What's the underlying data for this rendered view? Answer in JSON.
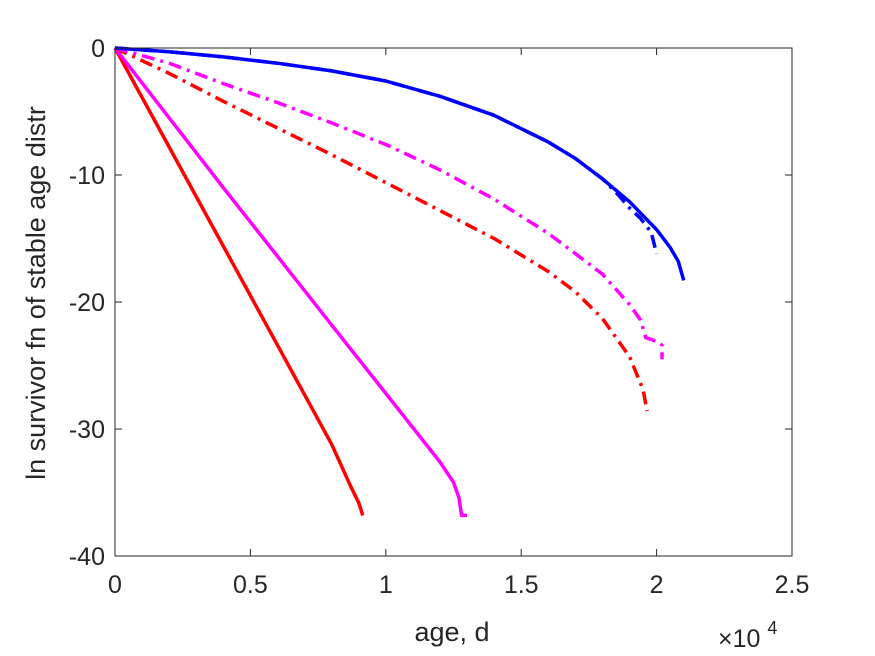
{
  "chart_data": {
    "type": "line",
    "xlabel": "age, d",
    "ylabel": "ln survivor fn of stable age distr",
    "xlim": [
      0,
      25000
    ],
    "ylim": [
      -40,
      0
    ],
    "x_exponent_label": "×10",
    "x_exponent_power": "4",
    "x_tick_values": [
      0,
      5000,
      10000,
      15000,
      20000,
      25000
    ],
    "x_tick_labels": [
      "0",
      "0.5",
      "1",
      "1.5",
      "2",
      "2.5"
    ],
    "y_tick_values": [
      0,
      -10,
      -20,
      -30,
      -40
    ],
    "y_tick_labels": [
      "0",
      "-10",
      "-20",
      "-30",
      "-40"
    ],
    "grid": false,
    "series": [
      {
        "color": "#ff0000",
        "style": "solid",
        "x": [
          0,
          2000,
          4000,
          6000,
          8000,
          8700,
          9000,
          9150
        ],
        "y": [
          0,
          -7.8,
          -15.6,
          -23.4,
          -31.2,
          -34.5,
          -35.8,
          -36.8
        ]
      },
      {
        "color": "#ff00ff",
        "style": "solid",
        "x": [
          0,
          2000,
          4000,
          6000,
          8000,
          10000,
          12000,
          12500,
          12700,
          12800,
          13000
        ],
        "y": [
          0,
          -5.5,
          -11.0,
          -16.4,
          -21.8,
          -27.2,
          -32.6,
          -34.2,
          -35.4,
          -36.8,
          -36.8
        ]
      },
      {
        "color": "#ff0000",
        "style": "dashdot",
        "x": [
          0,
          2000,
          4000,
          6000,
          8000,
          10000,
          12000,
          14000,
          16000,
          17000,
          18000,
          19000,
          19500,
          19650
        ],
        "y": [
          0,
          -2.0,
          -4.2,
          -6.3,
          -8.4,
          -10.6,
          -12.8,
          -15.0,
          -17.6,
          -19.2,
          -21.3,
          -24.3,
          -26.9,
          -28.6
        ]
      },
      {
        "color": "#ff00ff",
        "style": "dashdot",
        "x": [
          0,
          2000,
          4000,
          6000,
          8000,
          10000,
          12000,
          14000,
          16000,
          17000,
          18000,
          19000,
          19400,
          19600,
          20000,
          20200,
          20200
        ],
        "y": [
          0,
          -1.2,
          -2.8,
          -4.3,
          -5.9,
          -7.6,
          -9.6,
          -11.9,
          -14.6,
          -16.2,
          -17.8,
          -20.2,
          -21.4,
          -22.8,
          -23.1,
          -23.4,
          -24.5
        ]
      },
      {
        "color": "#0000ff",
        "style": "dashdot",
        "x": [
          0,
          2000,
          4000,
          6000,
          8000,
          10000,
          12000,
          14000,
          16000,
          17000,
          18000,
          18600,
          19000,
          19400,
          19800,
          20000
        ],
        "y": [
          0,
          -0.3,
          -0.7,
          -1.2,
          -1.8,
          -2.6,
          -3.8,
          -5.3,
          -7.4,
          -8.7,
          -10.3,
          -11.6,
          -12.6,
          -13.4,
          -14.5,
          -16.2
        ]
      },
      {
        "color": "#0000ff",
        "style": "solid",
        "x": [
          0,
          2000,
          4000,
          6000,
          8000,
          10000,
          12000,
          14000,
          16000,
          17000,
          18000,
          19000,
          20000,
          20500,
          20800,
          21000
        ],
        "y": [
          0,
          -0.3,
          -0.7,
          -1.2,
          -1.8,
          -2.6,
          -3.8,
          -5.3,
          -7.4,
          -8.7,
          -10.3,
          -12.1,
          -14.3,
          -15.7,
          -16.8,
          -18.3
        ]
      }
    ]
  }
}
